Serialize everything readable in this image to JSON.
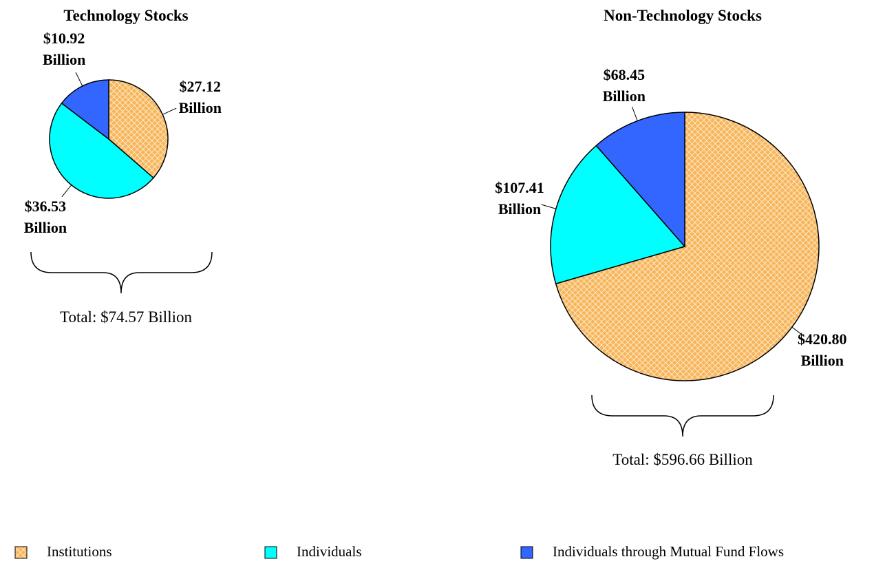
{
  "chart_data": [
    {
      "type": "pie",
      "title": "Technology Stocks",
      "categories": [
        "Institutions",
        "Individuals",
        "Individuals through Mutual Fund Flows"
      ],
      "values": [
        27.12,
        36.53,
        10.92
      ],
      "value_labels": [
        "$27.12 Billion",
        "$36.53 Billion",
        "$10.92 Billion"
      ],
      "colors": [
        "#f7b65c",
        "#00ffff",
        "#3366ff"
      ],
      "hatch": [
        true,
        false,
        false
      ],
      "total_label": "Total: $74.57 Billion"
    },
    {
      "type": "pie",
      "title": "Non-Technology Stocks",
      "categories": [
        "Institutions",
        "Individuals",
        "Individuals through Mutual Fund Flows"
      ],
      "values": [
        420.8,
        107.41,
        68.45
      ],
      "value_labels": [
        "$420.80 Billion",
        "$107.41 Billion",
        "$68.45 Billion"
      ],
      "colors": [
        "#f7b65c",
        "#00ffff",
        "#3366ff"
      ],
      "hatch": [
        true,
        false,
        false
      ],
      "total_label": "Total: $596.66 Billion"
    }
  ]
}
